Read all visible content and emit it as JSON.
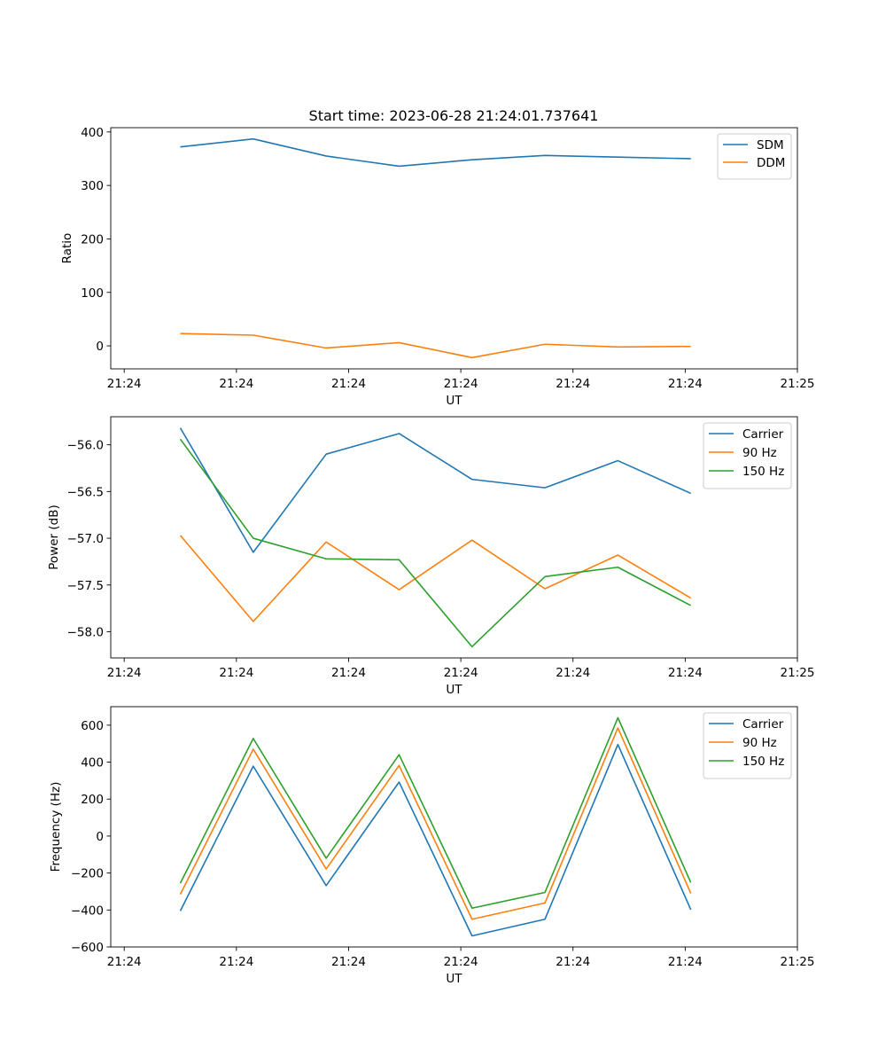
{
  "figure": {
    "title": "Start time: 2023-06-28 21:24:01.737641"
  },
  "chart_data": [
    {
      "type": "line",
      "xlabel": "UT",
      "ylabel": "Ratio",
      "x_tick_labels": [
        "21:24",
        "21:24",
        "21:24",
        "21:24",
        "21:24",
        "21:24",
        "21:24"
      ],
      "x_tick_last_label": "21:25",
      "x_tick_positions": [
        0,
        1,
        2,
        3,
        4,
        5,
        6
      ],
      "x": [
        0.5,
        1.15,
        1.8,
        2.45,
        3.1,
        3.75,
        4.4,
        5.05
      ],
      "xlim": [
        -0.12,
        6.0
      ],
      "ylim": [
        -43,
        408
      ],
      "yticks": [
        0,
        100,
        200,
        300,
        400
      ],
      "y_tick_labels": [
        "0",
        "100",
        "200",
        "300",
        "400"
      ],
      "legend_position": "top-right",
      "series": [
        {
          "name": "SDM",
          "color": "#1f77b4",
          "values": [
            372,
            387,
            355,
            336,
            348,
            356,
            353,
            350
          ]
        },
        {
          "name": "DDM",
          "color": "#ff7f0e",
          "values": [
            23,
            20,
            -4,
            6,
            -22,
            3,
            -2,
            -1
          ]
        }
      ]
    },
    {
      "type": "line",
      "xlabel": "UT",
      "ylabel": "Power (dB)",
      "x_tick_labels": [
        "21:24",
        "21:24",
        "21:24",
        "21:24",
        "21:24",
        "21:24",
        "21:24"
      ],
      "x_tick_last_label": "21:25",
      "x_tick_positions": [
        0,
        1,
        2,
        3,
        4,
        5,
        6
      ],
      "x": [
        0.5,
        1.15,
        1.8,
        2.45,
        3.1,
        3.75,
        4.4,
        5.05
      ],
      "xlim": [
        -0.12,
        6.0
      ],
      "ylim": [
        -58.28,
        -55.7
      ],
      "yticks": [
        -58.0,
        -57.5,
        -57.0,
        -56.5,
        -56.0
      ],
      "y_tick_labels": [
        "−58.0",
        "−57.5",
        "−57.0",
        "−56.5",
        "−56.0"
      ],
      "legend_position": "top-right",
      "series": [
        {
          "name": "Carrier",
          "color": "#1f77b4",
          "values": [
            -55.82,
            -57.15,
            -56.1,
            -55.88,
            -56.37,
            -56.46,
            -56.17,
            -56.52
          ]
        },
        {
          "name": "90 Hz",
          "color": "#ff7f0e",
          "values": [
            -56.97,
            -57.89,
            -57.04,
            -57.55,
            -57.02,
            -57.54,
            -57.18,
            -57.64
          ]
        },
        {
          "name": "150 Hz",
          "color": "#2ca02c",
          "values": [
            -55.94,
            -57.0,
            -57.22,
            -57.23,
            -58.16,
            -57.41,
            -57.31,
            -57.72
          ]
        }
      ]
    },
    {
      "type": "line",
      "xlabel": "UT",
      "ylabel": "Frequency (Hz)",
      "x_tick_labels": [
        "21:24",
        "21:24",
        "21:24",
        "21:24",
        "21:24",
        "21:24",
        "21:24"
      ],
      "x_tick_last_label": "21:25",
      "x_tick_positions": [
        0,
        1,
        2,
        3,
        4,
        5,
        6
      ],
      "x": [
        0.5,
        1.15,
        1.8,
        2.45,
        3.1,
        3.75,
        4.4,
        5.05
      ],
      "xlim": [
        -0.12,
        6.0
      ],
      "ylim": [
        -600,
        700
      ],
      "yticks": [
        -600,
        -400,
        -200,
        0,
        200,
        400,
        600
      ],
      "y_tick_labels": [
        "−600",
        "−400",
        "−200",
        "0",
        "200",
        "400",
        "600"
      ],
      "legend_position": "top-right",
      "series": [
        {
          "name": "Carrier",
          "color": "#1f77b4",
          "values": [
            -405,
            378,
            -268,
            292,
            -540,
            -450,
            495,
            -398
          ]
        },
        {
          "name": "90 Hz",
          "color": "#ff7f0e",
          "values": [
            -315,
            470,
            -178,
            382,
            -450,
            -362,
            585,
            -310
          ]
        },
        {
          "name": "150 Hz",
          "color": "#2ca02c",
          "values": [
            -255,
            528,
            -120,
            440,
            -390,
            -305,
            640,
            -252
          ]
        }
      ]
    }
  ]
}
